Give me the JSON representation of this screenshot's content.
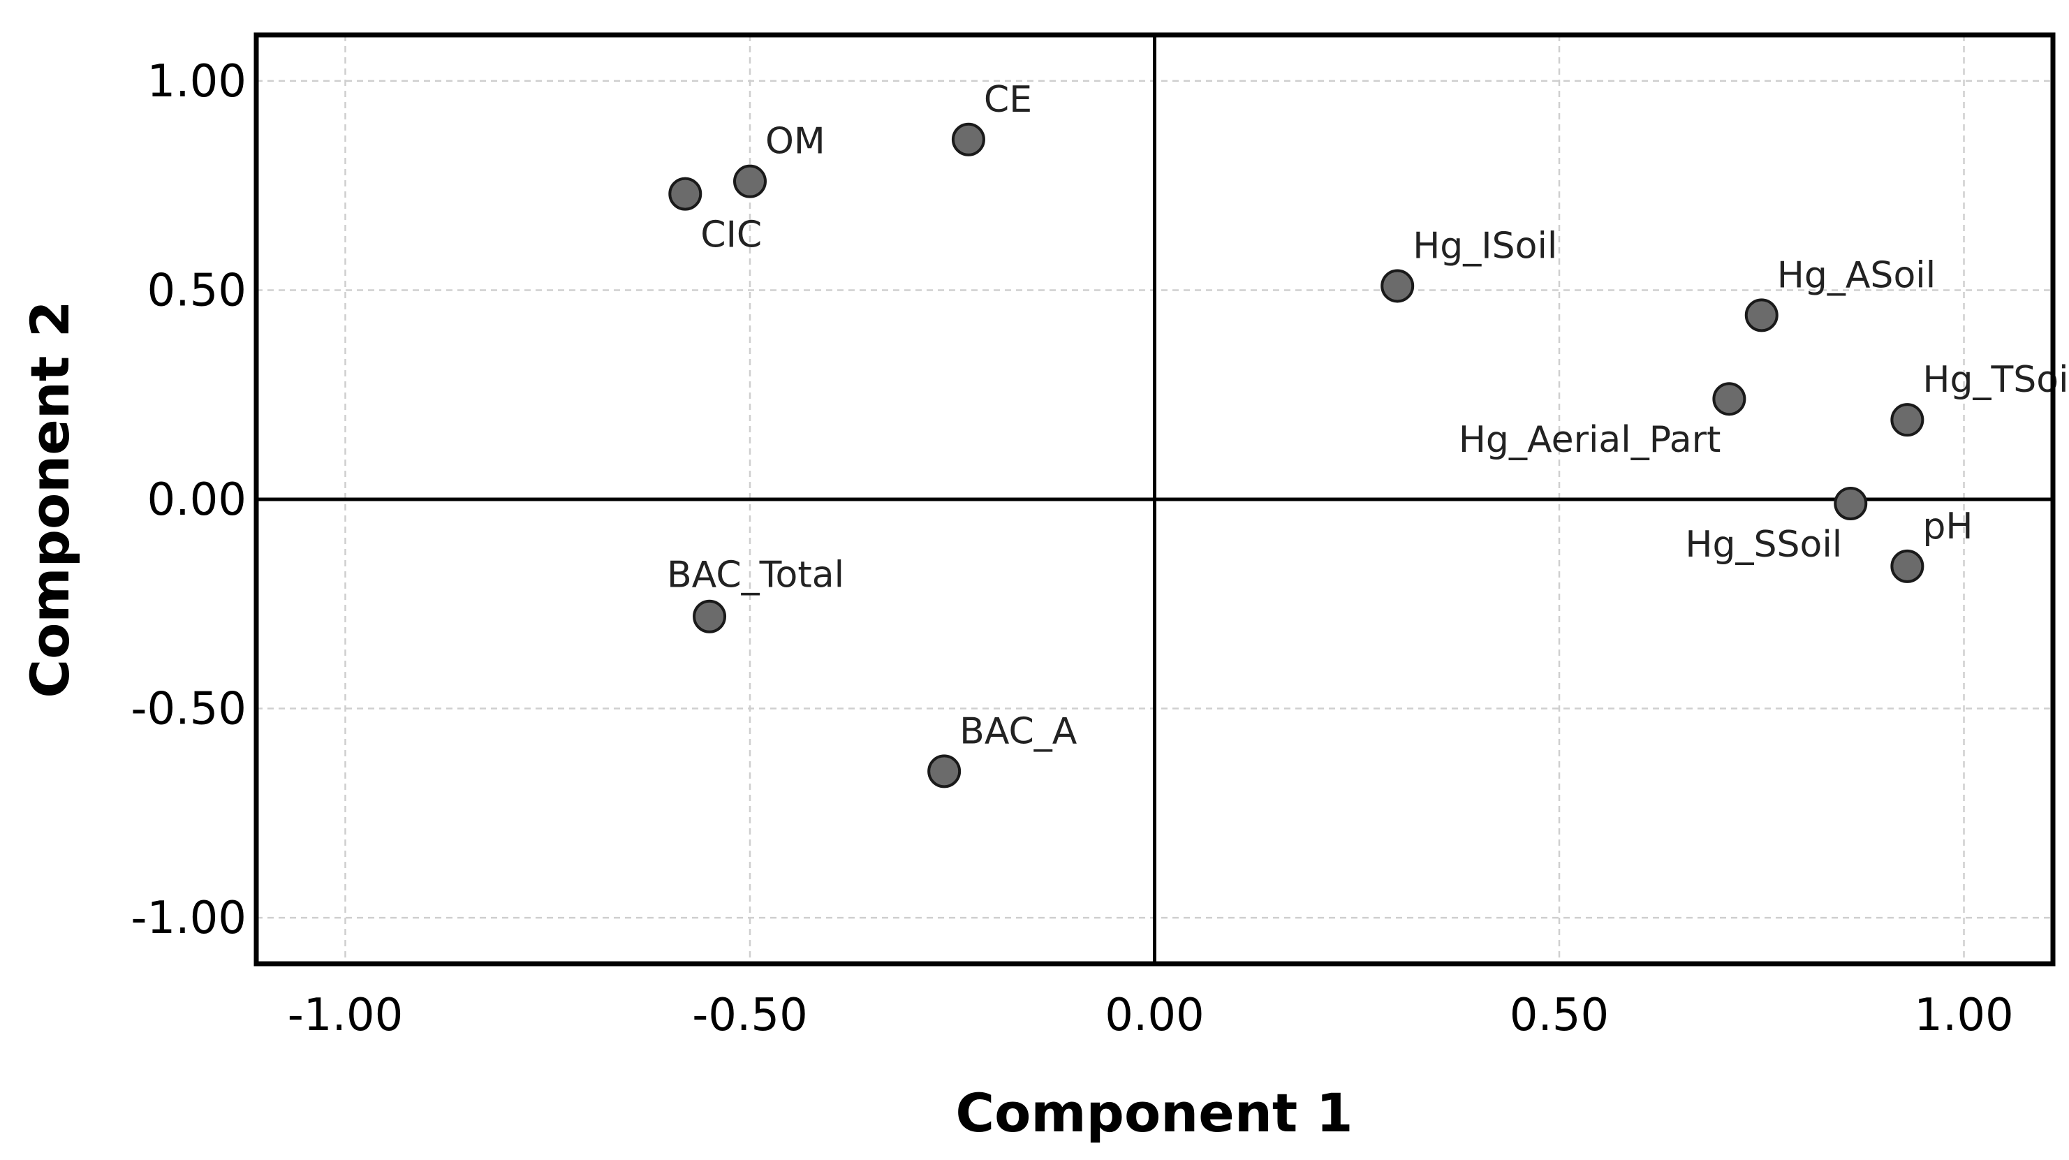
{
  "chart_data": {
    "type": "scatter",
    "title": "",
    "xlabel": "Component 1",
    "ylabel": "Component 2",
    "xlim": [
      -1.11,
      1.11
    ],
    "ylim": [
      -1.11,
      1.11
    ],
    "grid": true,
    "x_ticks": [
      {
        "value": -1.0,
        "label": "-1.00"
      },
      {
        "value": -0.5,
        "label": "-0.50"
      },
      {
        "value": 0.0,
        "label": "0.00"
      },
      {
        "value": 0.5,
        "label": "0.50"
      },
      {
        "value": 1.0,
        "label": "1.00"
      }
    ],
    "y_ticks": [
      {
        "value": 1.0,
        "label": "1.00"
      },
      {
        "value": 0.5,
        "label": "0.50"
      },
      {
        "value": 0.0,
        "label": "0.00"
      },
      {
        "value": -0.5,
        "label": "-0.50"
      },
      {
        "value": -1.0,
        "label": "-1.00"
      }
    ],
    "points": [
      {
        "label": "CE",
        "x": -0.23,
        "y": 0.86,
        "label_pos": "above-right"
      },
      {
        "label": "OM",
        "x": -0.5,
        "y": 0.76,
        "label_pos": "above-right"
      },
      {
        "label": "CIC",
        "x": -0.58,
        "y": 0.73,
        "label_pos": "below-right"
      },
      {
        "label": "Hg_ISoil",
        "x": 0.3,
        "y": 0.51,
        "label_pos": "above-right"
      },
      {
        "label": "Hg_ASoil",
        "x": 0.75,
        "y": 0.44,
        "label_pos": "above-right"
      },
      {
        "label": "Hg_Aerial_Part",
        "x": 0.71,
        "y": 0.24,
        "label_pos": "below-left"
      },
      {
        "label": "Hg_TSoil",
        "x": 0.93,
        "y": 0.19,
        "label_pos": "above-right"
      },
      {
        "label": "Hg_SSoil",
        "x": 0.86,
        "y": -0.01,
        "label_pos": "below-left"
      },
      {
        "label": "pH",
        "x": 0.93,
        "y": -0.16,
        "label_pos": "above-right"
      },
      {
        "label": "BAC_Total",
        "x": -0.55,
        "y": -0.28,
        "label_pos": "above"
      },
      {
        "label": "BAC_A",
        "x": -0.26,
        "y": -0.65,
        "label_pos": "above-right"
      }
    ]
  }
}
